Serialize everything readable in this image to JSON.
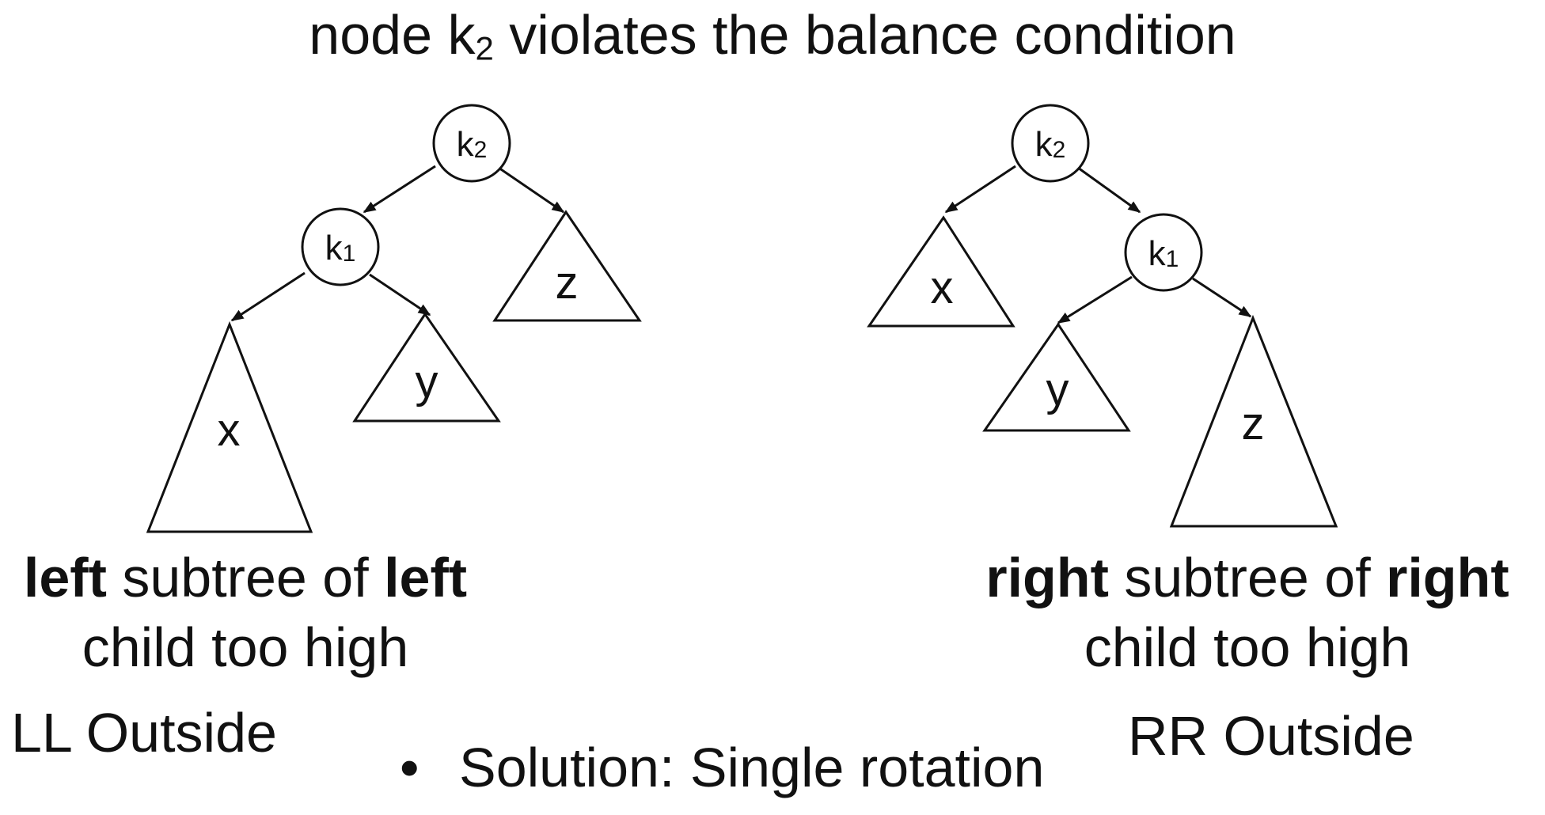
{
  "title": {
    "prefix": "node k",
    "sub": "2",
    "suffix": " violates the balance condition"
  },
  "left_tree": {
    "nodes": {
      "k2": {
        "base": "k",
        "sub": "2"
      },
      "k1": {
        "base": "k",
        "sub": "1"
      }
    },
    "subtrees": {
      "x": "x",
      "y": "y",
      "z": "z"
    },
    "caption": {
      "w1": "left",
      "mid": " subtree of ",
      "w2": "left",
      "line2": "child too high"
    },
    "case_label": "LL Outside"
  },
  "right_tree": {
    "nodes": {
      "k2": {
        "base": "k",
        "sub": "2"
      },
      "k1": {
        "base": "k",
        "sub": "1"
      }
    },
    "subtrees": {
      "x": "x",
      "y": "y",
      "z": "z"
    },
    "caption": {
      "w1": "right",
      "mid": " subtree of ",
      "w2": "right",
      "line2": "child too high"
    },
    "case_label": "RR Outside"
  },
  "solution": {
    "bullet": "•",
    "text": "Solution: Single rotation"
  },
  "colors": {
    "stroke": "#111111",
    "background": "#ffffff"
  }
}
